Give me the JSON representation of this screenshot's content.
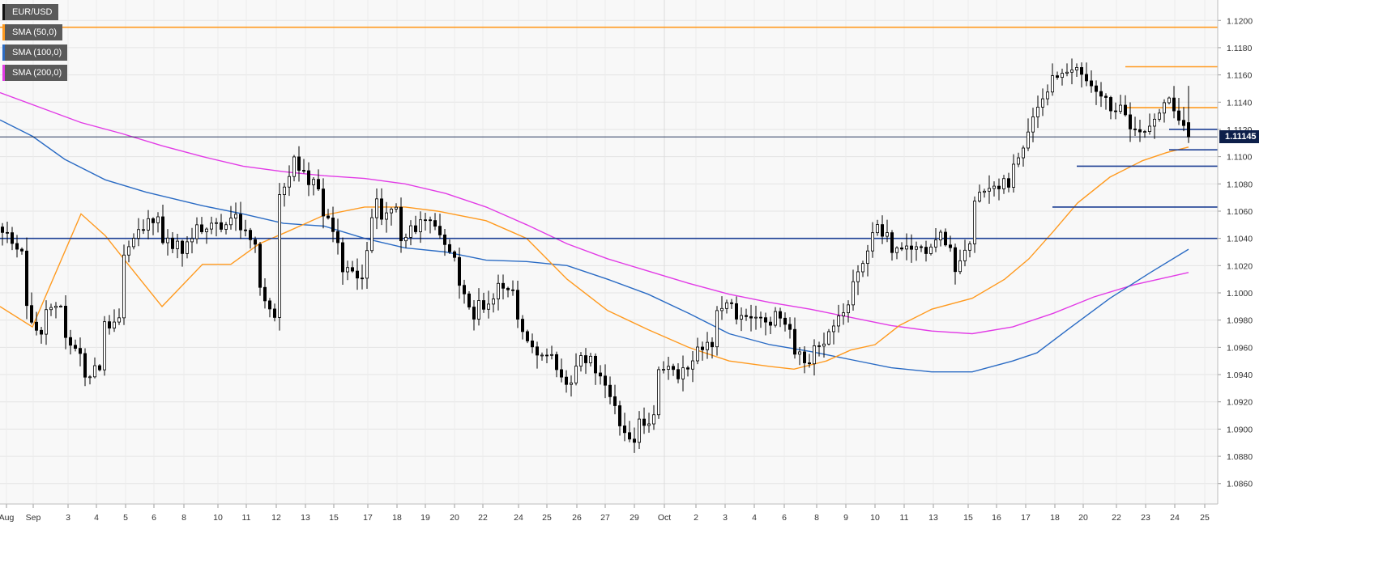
{
  "chart_data": {
    "type": "candlestick",
    "symbol": "EUR/USD",
    "last_price": "1.11145",
    "y_range": [
      1.0845,
      1.1215
    ],
    "y_ticks": [
      "1.0860",
      "1.0880",
      "1.0900",
      "1.0920",
      "1.0940",
      "1.0960",
      "1.0980",
      "1.1000",
      "1.1020",
      "1.1040",
      "1.1060",
      "1.1080",
      "1.1100",
      "1.1120",
      "1.1140",
      "1.1160",
      "1.1180",
      "1.1200"
    ],
    "x_ticks": [
      "Aug",
      "Sep",
      "3",
      "4",
      "5",
      "6",
      "8",
      "10",
      "11",
      "12",
      "13",
      "15",
      "17",
      "18",
      "19",
      "20",
      "22",
      "24",
      "25",
      "26",
      "27",
      "29",
      "Oct",
      "2",
      "3",
      "4",
      "6",
      "8",
      "9",
      "10",
      "11",
      "13",
      "15",
      "16",
      "17",
      "18",
      "20",
      "22",
      "23",
      "24",
      "25"
    ],
    "grid": true,
    "legend": [
      {
        "label": "EUR/USD",
        "color": "#111111"
      },
      {
        "label": "SMA (50,0)",
        "color": "#ff9a1f"
      },
      {
        "label": "SMA (100,0)",
        "color": "#2a6bc4"
      },
      {
        "label": "SMA (200,0)",
        "color": "#e23be6"
      }
    ],
    "colors": {
      "up": "#ffffff",
      "down": "#000000",
      "wick": "#000000",
      "sma50": "#ff9a1f",
      "sma100": "#2a6bc4",
      "sma200": "#e23be6",
      "level_orange": "#ff9a1f",
      "level_blue": "#1c3f94",
      "last": "#0d1f4a"
    },
    "horizontal_levels": [
      {
        "price": 1.1195,
        "color": "orange",
        "from_bar": 0,
        "to_bar": -1
      },
      {
        "price": 1.1166,
        "color": "orange",
        "from_bar": -14,
        "to_bar": -1
      },
      {
        "price": 1.1136,
        "color": "orange",
        "from_bar": -14,
        "to_bar": -1
      },
      {
        "price": 1.112,
        "color": "blue",
        "from_bar": -5,
        "to_bar": -1
      },
      {
        "price": 1.1105,
        "color": "blue",
        "from_bar": -5,
        "to_bar": -1
      },
      {
        "price": 1.1093,
        "color": "blue",
        "from_bar": -24,
        "to_bar": -1
      },
      {
        "price": 1.1063,
        "color": "blue",
        "from_bar": -29,
        "to_bar": -1
      },
      {
        "price": 1.104,
        "color": "blue",
        "from_bar": 0,
        "to_bar": -1
      }
    ],
    "anchors": [
      [
        1.1061,
        1.1043
      ],
      [
        1.1033,
        1.0995
      ],
      [
        1.0966,
        1.099
      ],
      [
        1.0986,
        1.097
      ],
      [
        1.0955,
        1.0935
      ],
      [
        1.0948,
        1.0975
      ],
      [
        1.0983,
        1.1024
      ],
      [
        1.1047,
        1.1045
      ],
      [
        1.1062,
        1.1038
      ],
      [
        1.1035,
        1.1025
      ],
      [
        1.1052,
        1.1041
      ],
      [
        1.1056,
        1.1042
      ],
      [
        1.106,
        1.1047
      ],
      [
        1.1036,
        1.1005
      ],
      [
        1.0975,
        1.1068
      ],
      [
        1.1108,
        1.1088
      ],
      [
        1.1079,
        1.1063
      ],
      [
        1.104,
        1.1016
      ],
      [
        1.1015,
        1.1
      ],
      [
        1.1074,
        1.1049
      ],
      [
        1.1068,
        1.1035
      ],
      [
        1.105,
        1.105
      ],
      [
        1.1053,
        1.1042
      ],
      [
        1.1022,
        1.101
      ],
      [
        1.0975,
        1.099
      ],
      [
        1.0995,
        1.1007
      ],
      [
        1.1002,
        1.098
      ],
      [
        1.096,
        1.095
      ],
      [
        1.0952,
        1.0945
      ],
      [
        1.0925,
        1.095
      ],
      [
        1.0956,
        1.094
      ],
      [
        1.092,
        1.0905
      ],
      [
        1.0893,
        1.0902
      ],
      [
        1.091,
        1.094
      ],
      [
        1.0945,
        1.0935
      ],
      [
        1.095,
        1.0962
      ],
      [
        1.096,
        1.099
      ],
      [
        1.0989,
        1.0978
      ],
      [
        1.0985,
        1.098
      ],
      [
        1.098,
        1.0985
      ],
      [
        1.0975,
        1.096
      ],
      [
        1.0945,
        1.0958
      ],
      [
        1.097,
        1.0978
      ],
      [
        1.099,
        1.101
      ],
      [
        1.104,
        1.1048
      ],
      [
        1.104,
        1.1033
      ],
      [
        1.103,
        1.1028
      ],
      [
        1.1035,
        1.1045
      ],
      [
        1.1035,
        1.1005
      ],
      [
        1.104,
        1.1062
      ],
      [
        1.108,
        1.108
      ],
      [
        1.108,
        1.1092
      ],
      [
        1.112,
        1.113
      ],
      [
        1.115,
        1.116
      ],
      [
        1.116,
        1.1165
      ],
      [
        1.1155,
        1.115
      ],
      [
        1.114,
        1.1138
      ],
      [
        1.113,
        1.1125
      ],
      [
        1.112,
        1.1122
      ],
      [
        1.1145,
        1.114
      ],
      [
        1.1112,
        1.1114
      ]
    ],
    "sma50": [
      [
        0,
        1.099
      ],
      [
        40,
        1.0975
      ],
      [
        100,
        1.1058
      ],
      [
        130,
        1.1042
      ],
      [
        150,
        1.1027
      ],
      [
        200,
        1.099
      ],
      [
        250,
        1.1021
      ],
      [
        285,
        1.1021
      ],
      [
        320,
        1.1036
      ],
      [
        355,
        1.1045
      ],
      [
        400,
        1.1057
      ],
      [
        450,
        1.1063
      ],
      [
        500,
        1.1063
      ],
      [
        540,
        1.106
      ],
      [
        600,
        1.1053
      ],
      [
        650,
        1.104
      ],
      [
        700,
        1.101
      ],
      [
        750,
        1.0987
      ],
      [
        800,
        1.0973
      ],
      [
        850,
        1.096
      ],
      [
        900,
        1.095
      ],
      [
        950,
        1.0946
      ],
      [
        980,
        1.0944
      ],
      [
        1020,
        1.095
      ],
      [
        1050,
        1.0958
      ],
      [
        1080,
        1.0962
      ],
      [
        1110,
        1.0976
      ],
      [
        1150,
        1.0988
      ],
      [
        1200,
        1.0996
      ],
      [
        1240,
        1.101
      ],
      [
        1270,
        1.1025
      ],
      [
        1300,
        1.1045
      ],
      [
        1330,
        1.1066
      ],
      [
        1370,
        1.1085
      ],
      [
        1410,
        1.1097
      ],
      [
        1440,
        1.1103
      ],
      [
        1467,
        1.1107
      ]
    ],
    "sma100": [
      [
        0,
        1.1127
      ],
      [
        40,
        1.1115
      ],
      [
        80,
        1.1098
      ],
      [
        130,
        1.1083
      ],
      [
        180,
        1.1074
      ],
      [
        250,
        1.1064
      ],
      [
        300,
        1.1058
      ],
      [
        350,
        1.1051
      ],
      [
        400,
        1.1049
      ],
      [
        450,
        1.104
      ],
      [
        500,
        1.1033
      ],
      [
        550,
        1.103
      ],
      [
        600,
        1.1024
      ],
      [
        650,
        1.1023
      ],
      [
        700,
        1.102
      ],
      [
        750,
        1.101
      ],
      [
        800,
        1.0999
      ],
      [
        850,
        1.0985
      ],
      [
        900,
        1.097
      ],
      [
        950,
        1.0962
      ],
      [
        1000,
        1.0957
      ],
      [
        1050,
        1.0951
      ],
      [
        1100,
        1.0945
      ],
      [
        1150,
        1.0942
      ],
      [
        1200,
        1.0942
      ],
      [
        1250,
        1.095
      ],
      [
        1280,
        1.0956
      ],
      [
        1320,
        1.0974
      ],
      [
        1370,
        1.0996
      ],
      [
        1420,
        1.1015
      ],
      [
        1467,
        1.1032
      ]
    ],
    "sma200": [
      [
        0,
        1.1147
      ],
      [
        50,
        1.1136
      ],
      [
        100,
        1.1125
      ],
      [
        150,
        1.1117
      ],
      [
        200,
        1.1108
      ],
      [
        250,
        1.11
      ],
      [
        300,
        1.1093
      ],
      [
        350,
        1.1089
      ],
      [
        400,
        1.1086
      ],
      [
        450,
        1.1084
      ],
      [
        500,
        1.108
      ],
      [
        550,
        1.1073
      ],
      [
        600,
        1.1063
      ],
      [
        650,
        1.105
      ],
      [
        700,
        1.1036
      ],
      [
        750,
        1.1025
      ],
      [
        800,
        1.1016
      ],
      [
        850,
        1.1007
      ],
      [
        900,
        1.0999
      ],
      [
        950,
        1.0993
      ],
      [
        1000,
        1.0988
      ],
      [
        1050,
        1.0982
      ],
      [
        1100,
        1.0976
      ],
      [
        1150,
        1.0972
      ],
      [
        1200,
        1.097
      ],
      [
        1250,
        1.0975
      ],
      [
        1300,
        1.0985
      ],
      [
        1350,
        1.0997
      ],
      [
        1400,
        1.1006
      ],
      [
        1467,
        1.1015
      ]
    ]
  }
}
